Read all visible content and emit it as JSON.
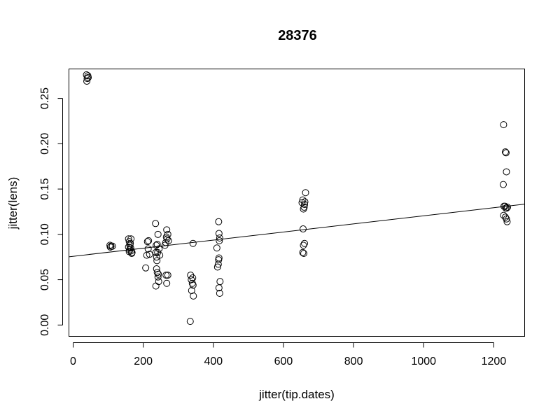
{
  "chart_data": {
    "type": "scatter",
    "title": "28376",
    "xlabel": "jitter(tip.dates)",
    "ylabel": "jitter(lens)",
    "xlim": [
      -12,
      1288
    ],
    "ylim": [
      -0.0125,
      0.2825
    ],
    "x_ticks": [
      0,
      200,
      400,
      600,
      800,
      1000,
      1200
    ],
    "x_tick_labels": [
      "0",
      "200",
      "400",
      "600",
      "800",
      "1000",
      "1200"
    ],
    "y_ticks": [
      0.0,
      0.05,
      0.1,
      0.15,
      0.2,
      0.25
    ],
    "y_tick_labels": [
      "0.00",
      "0.05",
      "0.10",
      "0.15",
      "0.20",
      "0.25"
    ],
    "grid": false,
    "legend": "none",
    "fit_line": {
      "intercept": 0.0758,
      "slope": 4.47e-05
    },
    "points": [
      [
        38,
        0.276
      ],
      [
        40,
        0.272
      ],
      [
        39,
        0.269
      ],
      [
        42,
        0.275
      ],
      [
        43,
        0.273
      ],
      [
        105,
        0.088
      ],
      [
        108,
        0.087
      ],
      [
        112,
        0.087
      ],
      [
        106,
        0.086
      ],
      [
        158,
        0.095
      ],
      [
        160,
        0.092
      ],
      [
        162,
        0.088
      ],
      [
        164,
        0.085
      ],
      [
        166,
        0.082
      ],
      [
        168,
        0.08
      ],
      [
        158,
        0.086
      ],
      [
        163,
        0.09
      ],
      [
        160,
        0.081
      ],
      [
        165,
        0.095
      ],
      [
        167,
        0.079
      ],
      [
        161,
        0.083
      ],
      [
        207,
        0.063
      ],
      [
        210,
        0.077
      ],
      [
        212,
        0.092
      ],
      [
        215,
        0.093
      ],
      [
        218,
        0.078
      ],
      [
        214,
        0.084
      ],
      [
        235,
        0.112
      ],
      [
        236,
        0.08
      ],
      [
        238,
        0.075
      ],
      [
        240,
        0.089
      ],
      [
        242,
        0.1
      ],
      [
        238,
        0.062
      ],
      [
        240,
        0.058
      ],
      [
        242,
        0.053
      ],
      [
        243,
        0.056
      ],
      [
        244,
        0.048
      ],
      [
        236,
        0.043
      ],
      [
        239,
        0.071
      ],
      [
        241,
        0.08
      ],
      [
        245,
        0.084
      ],
      [
        247,
        0.077
      ],
      [
        237,
        0.088
      ],
      [
        262,
        0.088
      ],
      [
        264,
        0.091
      ],
      [
        266,
        0.097
      ],
      [
        268,
        0.095
      ],
      [
        267,
        0.105
      ],
      [
        270,
        0.1
      ],
      [
        272,
        0.093
      ],
      [
        265,
        0.055
      ],
      [
        270,
        0.055
      ],
      [
        267,
        0.046
      ],
      [
        335,
        0.055
      ],
      [
        337,
        0.05
      ],
      [
        340,
        0.046
      ],
      [
        342,
        0.044
      ],
      [
        338,
        0.038
      ],
      [
        343,
        0.032
      ],
      [
        341,
        0.052
      ],
      [
        342,
        0.09
      ],
      [
        334,
        0.004
      ],
      [
        410,
        0.085
      ],
      [
        412,
        0.064
      ],
      [
        414,
        0.067
      ],
      [
        415,
        0.072
      ],
      [
        416,
        0.074
      ],
      [
        417,
        0.093
      ],
      [
        418,
        0.096
      ],
      [
        416,
        0.101
      ],
      [
        415,
        0.114
      ],
      [
        419,
        0.048
      ],
      [
        416,
        0.041
      ],
      [
        418,
        0.035
      ],
      [
        653,
        0.135
      ],
      [
        655,
        0.138
      ],
      [
        657,
        0.128
      ],
      [
        659,
        0.13
      ],
      [
        661,
        0.136
      ],
      [
        663,
        0.146
      ],
      [
        660,
        0.133
      ],
      [
        656,
        0.106
      ],
      [
        657,
        0.088
      ],
      [
        660,
        0.09
      ],
      [
        658,
        0.079
      ],
      [
        655,
        0.08
      ],
      [
        1228,
        0.221
      ],
      [
        1233,
        0.191
      ],
      [
        1235,
        0.19
      ],
      [
        1236,
        0.169
      ],
      [
        1227,
        0.155
      ],
      [
        1229,
        0.131
      ],
      [
        1232,
        0.131
      ],
      [
        1234,
        0.129
      ],
      [
        1237,
        0.129
      ],
      [
        1239,
        0.13
      ],
      [
        1228,
        0.121
      ],
      [
        1233,
        0.119
      ],
      [
        1236,
        0.117
      ],
      [
        1238,
        0.114
      ]
    ]
  }
}
